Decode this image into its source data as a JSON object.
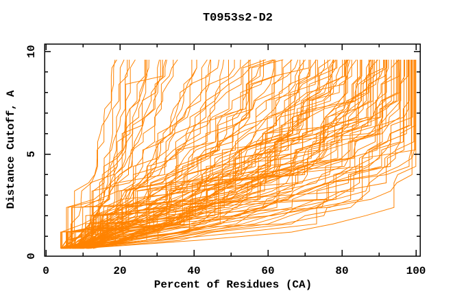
{
  "chart_data": {
    "type": "line",
    "title": "T0953s2-D2",
    "xlabel": "Percent of Residues (CA)",
    "ylabel": "Distance Cutoff, A",
    "xlim": [
      0,
      100
    ],
    "ylim": [
      0,
      10
    ],
    "x_major_ticks": [
      0,
      20,
      40,
      60,
      80,
      100
    ],
    "x_tick_labels": [
      "0",
      "20",
      "40",
      "60",
      "80",
      "100"
    ],
    "x_minor_ticks": [
      10,
      30,
      50,
      70,
      90
    ],
    "y_major_ticks": [
      0,
      5,
      10
    ],
    "y_tick_labels": [
      "0",
      "5",
      "10"
    ],
    "y_minor_ticks": [
      1,
      2,
      3,
      4,
      6,
      7,
      8,
      9
    ],
    "grid": false,
    "legend": null,
    "frame": "box-with-inward-ticks",
    "background_color": "#ffffff",
    "axis_color": "#000000",
    "line_color": "#ff8300",
    "series_count": 120,
    "cutoff_min": 0.4,
    "cutoff_max": 9.6,
    "cutoff_step": 0.4,
    "generator": {
      "seed": 1337,
      "n_curves": 120,
      "start_percent_min": 4,
      "start_percent_max": 13,
      "start_skew": 1.3,
      "end_percent_min": 18,
      "end_percent_max": 100,
      "end_skew": 1.6,
      "tau_base": 0.8,
      "tau_span": 9.0,
      "tau_quality_exp": 1.1,
      "tau_jitter": 0.8,
      "noise_amp": 5,
      "plateau_prob": 0.12
    }
  }
}
